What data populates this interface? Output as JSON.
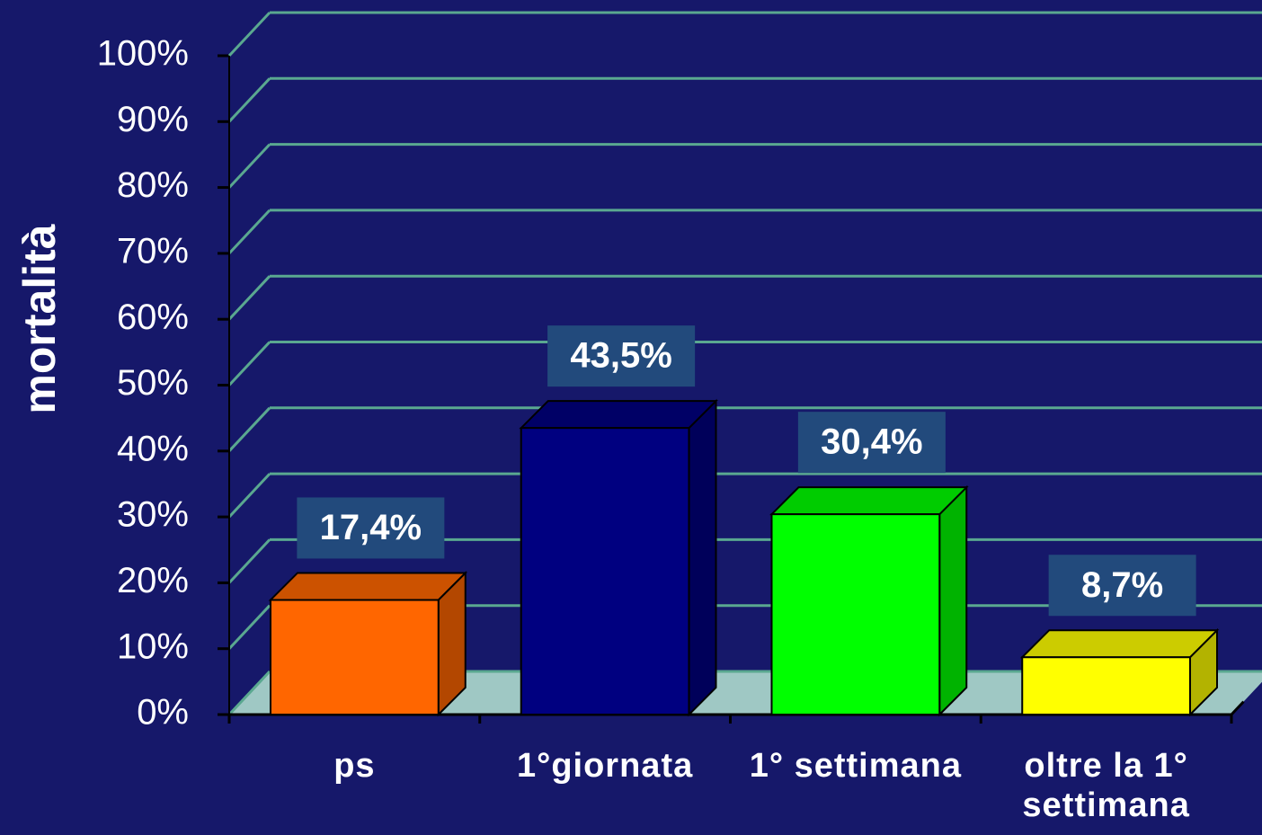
{
  "chart_data": {
    "type": "bar3d",
    "ylabel": "mortalità",
    "categories": [
      "ps",
      "1°giornata",
      "1° settimana",
      "oltre la 1° settimana"
    ],
    "values": [
      17.4,
      43.5,
      30.4,
      8.7
    ],
    "value_labels": [
      "17,4%",
      "43,5%",
      "30,4%",
      "8,7%"
    ],
    "colors": [
      "#ff6600",
      "#000080",
      "#00ff00",
      "#ffff00"
    ],
    "ylim": [
      0,
      100
    ],
    "yticks": [
      {
        "value": 0,
        "label": "0%"
      },
      {
        "value": 10,
        "label": "10%"
      },
      {
        "value": 20,
        "label": "20%"
      },
      {
        "value": 30,
        "label": "30%"
      },
      {
        "value": 40,
        "label": "40%"
      },
      {
        "value": 50,
        "label": "50%"
      },
      {
        "value": 60,
        "label": "60%"
      },
      {
        "value": 70,
        "label": "70%"
      },
      {
        "value": 80,
        "label": "80%"
      },
      {
        "value": 90,
        "label": "90%"
      },
      {
        "value": 100,
        "label": "100%"
      }
    ],
    "grid": true
  }
}
